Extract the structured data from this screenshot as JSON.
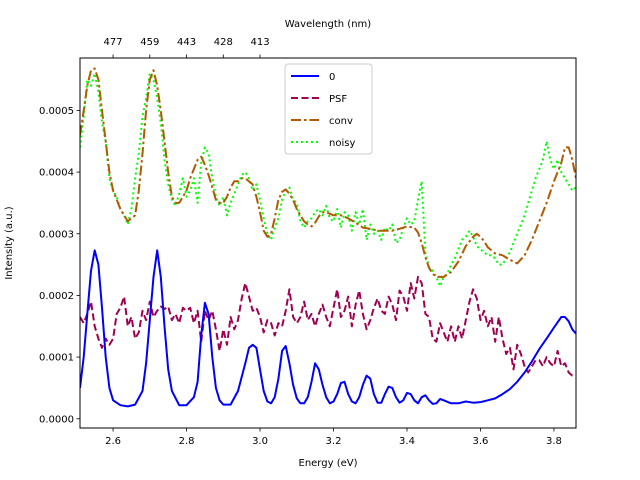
{
  "chart_data": {
    "type": "line",
    "xlabel": "Energy (eV)",
    "ylabel": "Intensity (a.u.)",
    "top_xlabel": "Wavelength (nm)",
    "xlim": [
      2.51,
      3.86
    ],
    "ylim": [
      -1.5e-05,
      0.000585
    ],
    "xticks": [
      2.6,
      2.8,
      3.0,
      3.2,
      3.4,
      3.6,
      3.8
    ],
    "xtick_labels": [
      "2.6",
      "2.8",
      "3.0",
      "3.2",
      "3.4",
      "3.6",
      "3.8"
    ],
    "yticks": [
      0.0,
      0.0001,
      0.0002,
      0.0003,
      0.0004,
      0.0005
    ],
    "ytick_labels": [
      "0.0000",
      "0.0001",
      "0.0002",
      "0.0003",
      "0.0004",
      "0.0005"
    ],
    "top_ticks_energy": [
      2.6,
      2.7,
      2.8,
      2.9,
      3.0
    ],
    "top_ticks_labels": [
      "477",
      "459",
      "443",
      "428",
      "413"
    ],
    "legend_position": "upper center",
    "series": [
      {
        "name": "0",
        "color": "#0000ff",
        "dash": "solid",
        "x": [
          2.51,
          2.52,
          2.53,
          2.54,
          2.55,
          2.56,
          2.57,
          2.58,
          2.59,
          2.6,
          2.62,
          2.64,
          2.66,
          2.68,
          2.69,
          2.7,
          2.71,
          2.72,
          2.73,
          2.74,
          2.75,
          2.76,
          2.78,
          2.8,
          2.82,
          2.83,
          2.84,
          2.85,
          2.86,
          2.87,
          2.88,
          2.89,
          2.9,
          2.92,
          2.94,
          2.96,
          2.97,
          2.98,
          2.99,
          3.0,
          3.01,
          3.02,
          3.03,
          3.04,
          3.05,
          3.06,
          3.07,
          3.08,
          3.09,
          3.1,
          3.11,
          3.12,
          3.13,
          3.14,
          3.15,
          3.16,
          3.17,
          3.18,
          3.19,
          3.2,
          3.21,
          3.22,
          3.23,
          3.24,
          3.25,
          3.26,
          3.27,
          3.28,
          3.29,
          3.3,
          3.31,
          3.32,
          3.33,
          3.34,
          3.35,
          3.36,
          3.37,
          3.38,
          3.39,
          3.4,
          3.41,
          3.42,
          3.43,
          3.44,
          3.45,
          3.46,
          3.47,
          3.48,
          3.49,
          3.5,
          3.52,
          3.54,
          3.56,
          3.58,
          3.6,
          3.62,
          3.64,
          3.66,
          3.68,
          3.7,
          3.72,
          3.74,
          3.76,
          3.78,
          3.8,
          3.82,
          3.83,
          3.84,
          3.85,
          3.86
        ],
        "y": [
          5e-05,
          0.0001,
          0.00017,
          0.00024,
          0.000273,
          0.00025,
          0.00018,
          0.0001,
          5e-05,
          3e-05,
          2.2e-05,
          2e-05,
          2.3e-05,
          4.5e-05,
          9e-05,
          0.00016,
          0.00023,
          0.000273,
          0.00023,
          0.00015,
          8e-05,
          4.5e-05,
          2.2e-05,
          2.2e-05,
          3.5e-05,
          6e-05,
          0.000135,
          0.000188,
          0.00017,
          0.0001,
          5e-05,
          3e-05,
          2.3e-05,
          2.3e-05,
          4.5e-05,
          9e-05,
          0.000115,
          0.00012,
          0.000115,
          8e-05,
          4.5e-05,
          2.8e-05,
          2.5e-05,
          3.5e-05,
          6.5e-05,
          0.00011,
          0.000118,
          9e-05,
          5.5e-05,
          3.3e-05,
          2.5e-05,
          2.5e-05,
          3.5e-05,
          6e-05,
          9e-05,
          8e-05,
          5.5e-05,
          3.5e-05,
          2.5e-05,
          2.8e-05,
          4e-05,
          5.8e-05,
          6e-05,
          4e-05,
          2.8e-05,
          2.5e-05,
          3.5e-05,
          5.5e-05,
          7e-05,
          6.5e-05,
          4e-05,
          2.6e-05,
          2.6e-05,
          4e-05,
          5.2e-05,
          5e-05,
          3.5e-05,
          2.6e-05,
          3e-05,
          4.2e-05,
          4e-05,
          3e-05,
          2.5e-05,
          3.5e-05,
          3.8e-05,
          3e-05,
          2.4e-05,
          2.5e-05,
          3.2e-05,
          3e-05,
          2.5e-05,
          2.5e-05,
          2.8e-05,
          2.6e-05,
          2.7e-05,
          3e-05,
          3.3e-05,
          4e-05,
          4.8e-05,
          6e-05,
          7.5e-05,
          9.3e-05,
          0.000113,
          0.00013,
          0.000148,
          0.000165,
          0.000165,
          0.000158,
          0.000145,
          0.000138
        ]
      },
      {
        "name": "PSF",
        "color": "#a0004f",
        "dash": "dashed",
        "x": [
          2.51,
          2.52,
          2.53,
          2.54,
          2.55,
          2.56,
          2.57,
          2.58,
          2.59,
          2.6,
          2.61,
          2.62,
          2.63,
          2.64,
          2.65,
          2.66,
          2.67,
          2.68,
          2.69,
          2.7,
          2.71,
          2.72,
          2.73,
          2.74,
          2.75,
          2.76,
          2.77,
          2.78,
          2.79,
          2.8,
          2.81,
          2.82,
          2.83,
          2.84,
          2.85,
          2.86,
          2.87,
          2.88,
          2.89,
          2.9,
          2.91,
          2.92,
          2.93,
          2.94,
          2.95,
          2.96,
          2.97,
          2.98,
          2.99,
          3.0,
          3.01,
          3.02,
          3.03,
          3.04,
          3.05,
          3.06,
          3.07,
          3.08,
          3.09,
          3.1,
          3.11,
          3.12,
          3.13,
          3.14,
          3.15,
          3.16,
          3.17,
          3.18,
          3.19,
          3.2,
          3.21,
          3.22,
          3.23,
          3.24,
          3.25,
          3.26,
          3.27,
          3.28,
          3.29,
          3.3,
          3.31,
          3.32,
          3.33,
          3.34,
          3.35,
          3.36,
          3.37,
          3.38,
          3.39,
          3.4,
          3.41,
          3.42,
          3.43,
          3.44,
          3.45,
          3.46,
          3.47,
          3.48,
          3.49,
          3.5,
          3.51,
          3.52,
          3.53,
          3.54,
          3.55,
          3.56,
          3.57,
          3.58,
          3.59,
          3.6,
          3.61,
          3.62,
          3.63,
          3.64,
          3.65,
          3.66,
          3.67,
          3.68,
          3.69,
          3.7,
          3.71,
          3.72,
          3.73,
          3.74,
          3.75,
          3.76,
          3.77,
          3.78,
          3.79,
          3.8,
          3.81,
          3.82,
          3.83,
          3.84,
          3.85,
          3.86
        ],
        "y": [
          0.000165,
          0.000155,
          0.00017,
          0.00019,
          0.00015,
          0.00013,
          0.000115,
          0.00013,
          0.00012,
          0.00013,
          0.00017,
          0.00018,
          0.000198,
          0.00015,
          0.000165,
          0.00013,
          0.00014,
          0.000175,
          0.00016,
          0.00019,
          0.000165,
          0.000175,
          0.000182,
          0.000178,
          0.000182,
          0.00016,
          0.00017,
          0.000155,
          0.00018,
          0.000175,
          0.00018,
          0.000155,
          0.000175,
          0.000125,
          0.000175,
          0.00016,
          0.000175,
          0.000145,
          0.00011,
          0.000145,
          0.00012,
          0.000165,
          0.000145,
          0.00016,
          0.000195,
          0.00022,
          0.000198,
          0.000175,
          0.00018,
          0.000165,
          0.00014,
          0.00016,
          0.000155,
          0.000135,
          0.000155,
          0.00015,
          0.000175,
          0.00021,
          0.000165,
          0.000155,
          0.000165,
          0.00019,
          0.00016,
          0.00017,
          0.00015,
          0.00017,
          0.000185,
          0.000165,
          0.00015,
          0.00018,
          0.00021,
          0.000165,
          0.000175,
          0.000198,
          0.00015,
          0.000185,
          0.000208,
          0.00017,
          0.000145,
          0.00016,
          0.00018,
          0.000195,
          0.000175,
          0.00017,
          0.000198,
          0.000185,
          0.00016,
          0.000208,
          0.000198,
          0.000175,
          0.00022,
          0.000195,
          0.00023,
          0.00022,
          0.00017,
          0.000165,
          0.00013,
          0.000125,
          0.000155,
          0.00014,
          0.000125,
          0.00015,
          0.000125,
          0.00015,
          0.00013,
          0.00016,
          0.00019,
          0.00021,
          0.000195,
          0.00016,
          0.000175,
          0.00015,
          0.000165,
          0.000125,
          0.000165,
          0.00013,
          0.000105,
          0.000115,
          8e-05,
          0.00012,
          0.000105,
          8.5e-05,
          7.5e-05,
          8.5e-05,
          9.5e-05,
          9.5e-05,
          8.5e-05,
          0.0001,
          9e-05,
          8.5e-05,
          0.00011,
          8.5e-05,
          9e-05,
          7.5e-05,
          7e-05,
          7e-05
        ]
      },
      {
        "name": "conv",
        "color": "#b35900",
        "dash": "dashdot",
        "x": [
          2.51,
          2.52,
          2.53,
          2.54,
          2.55,
          2.56,
          2.57,
          2.58,
          2.59,
          2.6,
          2.62,
          2.64,
          2.66,
          2.67,
          2.68,
          2.69,
          2.7,
          2.71,
          2.72,
          2.73,
          2.74,
          2.75,
          2.76,
          2.77,
          2.78,
          2.79,
          2.8,
          2.81,
          2.82,
          2.83,
          2.84,
          2.85,
          2.86,
          2.87,
          2.88,
          2.89,
          2.9,
          2.91,
          2.92,
          2.93,
          2.94,
          2.95,
          2.96,
          2.97,
          2.98,
          2.99,
          3.0,
          3.01,
          3.02,
          3.03,
          3.04,
          3.05,
          3.06,
          3.07,
          3.08,
          3.09,
          3.1,
          3.11,
          3.12,
          3.13,
          3.14,
          3.15,
          3.16,
          3.17,
          3.18,
          3.2,
          3.22,
          3.24,
          3.26,
          3.28,
          3.3,
          3.32,
          3.34,
          3.36,
          3.38,
          3.4,
          3.42,
          3.43,
          3.44,
          3.45,
          3.46,
          3.47,
          3.48,
          3.5,
          3.52,
          3.54,
          3.56,
          3.58,
          3.59,
          3.6,
          3.61,
          3.62,
          3.64,
          3.66,
          3.68,
          3.7,
          3.72,
          3.74,
          3.76,
          3.78,
          3.8,
          3.82,
          3.83,
          3.84,
          3.85,
          3.86
        ],
        "y": [
          0.00046,
          0.0005,
          0.00054,
          0.000565,
          0.000568,
          0.00055,
          0.0005,
          0.00045,
          0.0004,
          0.00037,
          0.00034,
          0.00032,
          0.00033,
          0.00037,
          0.00043,
          0.0005,
          0.00055,
          0.000565,
          0.00054,
          0.0005,
          0.00045,
          0.0004,
          0.00036,
          0.00035,
          0.00035,
          0.00036,
          0.00037,
          0.00039,
          0.000405,
          0.00042,
          0.000425,
          0.000412,
          0.000395,
          0.000375,
          0.000355,
          0.00035,
          0.00035,
          0.00036,
          0.000375,
          0.000385,
          0.000385,
          0.00039,
          0.00039,
          0.000385,
          0.00038,
          0.00036,
          0.000335,
          0.000305,
          0.000295,
          0.0003,
          0.000325,
          0.000355,
          0.000368,
          0.000372,
          0.000365,
          0.000355,
          0.00034,
          0.00033,
          0.00032,
          0.000315,
          0.000312,
          0.000318,
          0.000328,
          0.000335,
          0.000335,
          0.00033,
          0.00033,
          0.000325,
          0.000318,
          0.00031,
          0.000308,
          0.000305,
          0.000305,
          0.000305,
          0.000308,
          0.000312,
          0.00031,
          0.000302,
          0.000285,
          0.000262,
          0.000245,
          0.000235,
          0.00023,
          0.00023,
          0.000238,
          0.000255,
          0.00028,
          0.000295,
          0.0003,
          0.000295,
          0.000288,
          0.000278,
          0.000268,
          0.000265,
          0.000258,
          0.000252,
          0.000265,
          0.00029,
          0.00032,
          0.00035,
          0.000385,
          0.000415,
          0.00044,
          0.00044,
          0.00042,
          0.00039
        ]
      },
      {
        "name": "noisy",
        "color": "#00ff00",
        "dash": "dotted",
        "x": [
          2.51,
          2.52,
          2.53,
          2.54,
          2.55,
          2.56,
          2.57,
          2.58,
          2.59,
          2.6,
          2.61,
          2.62,
          2.63,
          2.64,
          2.65,
          2.66,
          2.67,
          2.68,
          2.69,
          2.7,
          2.71,
          2.72,
          2.73,
          2.74,
          2.75,
          2.76,
          2.77,
          2.78,
          2.79,
          2.8,
          2.81,
          2.82,
          2.83,
          2.84,
          2.85,
          2.86,
          2.87,
          2.88,
          2.89,
          2.9,
          2.91,
          2.92,
          2.93,
          2.94,
          2.95,
          2.96,
          2.97,
          2.98,
          2.99,
          3.0,
          3.01,
          3.02,
          3.03,
          3.04,
          3.05,
          3.06,
          3.07,
          3.08,
          3.09,
          3.1,
          3.11,
          3.12,
          3.13,
          3.14,
          3.15,
          3.16,
          3.17,
          3.18,
          3.19,
          3.2,
          3.21,
          3.22,
          3.23,
          3.24,
          3.25,
          3.26,
          3.27,
          3.28,
          3.29,
          3.3,
          3.31,
          3.32,
          3.33,
          3.34,
          3.35,
          3.36,
          3.37,
          3.38,
          3.39,
          3.4,
          3.41,
          3.42,
          3.43,
          3.44,
          3.45,
          3.46,
          3.47,
          3.48,
          3.49,
          3.5,
          3.51,
          3.52,
          3.53,
          3.54,
          3.55,
          3.56,
          3.57,
          3.58,
          3.59,
          3.6,
          3.61,
          3.62,
          3.63,
          3.64,
          3.65,
          3.66,
          3.67,
          3.68,
          3.69,
          3.7,
          3.71,
          3.72,
          3.73,
          3.74,
          3.75,
          3.76,
          3.77,
          3.78,
          3.79,
          3.8,
          3.81,
          3.82,
          3.83,
          3.84,
          3.85,
          3.86
        ],
        "y": [
          0.00044,
          0.00049,
          0.00055,
          0.00054,
          0.00056,
          0.00053,
          0.00048,
          0.00045,
          0.00039,
          0.00037,
          0.00036,
          0.00034,
          0.00033,
          0.000315,
          0.00034,
          0.00039,
          0.00043,
          0.00049,
          0.00052,
          0.00056,
          0.00055,
          0.00052,
          0.00048,
          0.00042,
          0.00038,
          0.000355,
          0.000345,
          0.000365,
          0.00039,
          0.00036,
          0.00037,
          0.00039,
          0.00035,
          0.000415,
          0.00044,
          0.00043,
          0.00039,
          0.00036,
          0.000345,
          0.00036,
          0.00033,
          0.00035,
          0.000365,
          0.00038,
          0.000395,
          0.0004,
          0.00039,
          0.00037,
          0.00038,
          0.000355,
          0.000325,
          0.0003,
          0.00029,
          0.00031,
          0.000325,
          0.000355,
          0.00037,
          0.000375,
          0.000355,
          0.00035,
          0.00032,
          0.00031,
          0.00032,
          0.000325,
          0.000335,
          0.00034,
          0.00033,
          0.000345,
          0.000325,
          0.00032,
          0.00034,
          0.00031,
          0.000335,
          0.00033,
          0.000305,
          0.000335,
          0.000315,
          0.00034,
          0.00029,
          0.000315,
          0.0003,
          0.000305,
          0.00029,
          0.00031,
          0.000305,
          0.000315,
          0.000285,
          0.00029,
          0.00031,
          0.000325,
          0.000315,
          0.00032,
          0.000355,
          0.000385,
          0.00027,
          0.000245,
          0.00024,
          0.00023,
          0.000215,
          0.00023,
          0.000235,
          0.00025,
          0.00026,
          0.000275,
          0.00029,
          0.000295,
          0.000305,
          0.000295,
          0.00028,
          0.000275,
          0.00027,
          0.000265,
          0.000265,
          0.00026,
          0.00025,
          0.00025,
          0.00026,
          0.00027,
          0.000285,
          0.0003,
          0.000315,
          0.00033,
          0.00035,
          0.00037,
          0.00039,
          0.000405,
          0.00042,
          0.00045,
          0.00042,
          0.000405,
          0.00042,
          0.0004,
          0.00039,
          0.00038,
          0.00037,
          0.000375
        ]
      }
    ]
  }
}
